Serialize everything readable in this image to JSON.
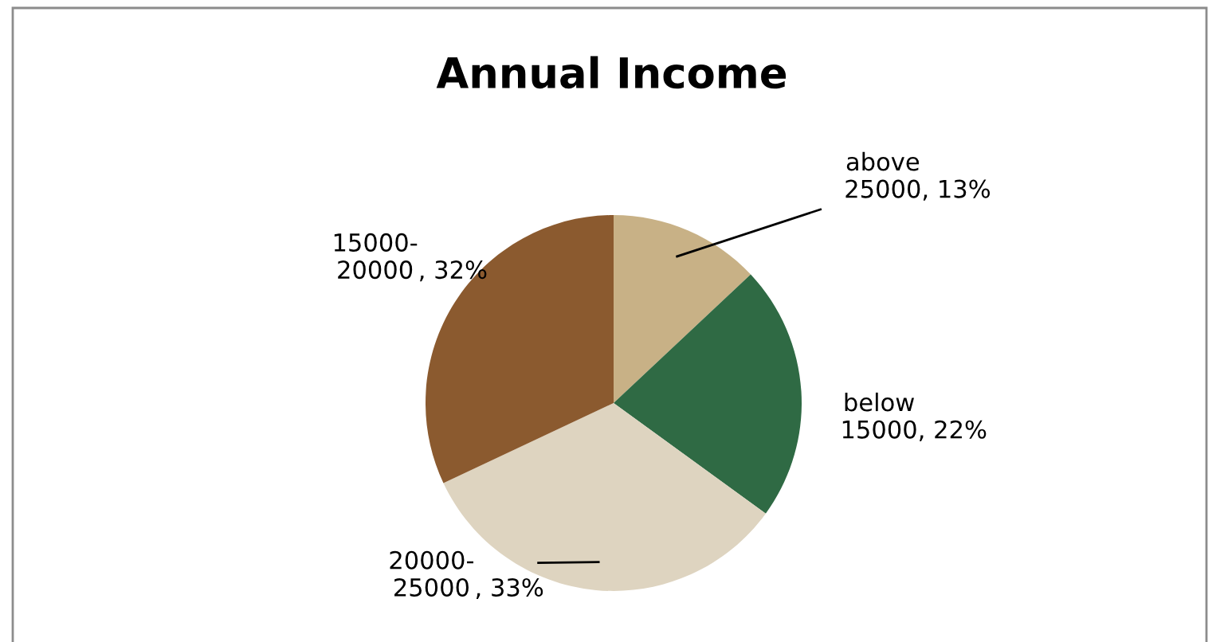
{
  "chart_data": {
    "type": "pie",
    "title": "Annual Income",
    "categories": [
      "above 25000",
      "below 15000",
      "20000-25000",
      "15000-20000"
    ],
    "values": [
      13,
      22,
      33,
      32
    ],
    "colors": [
      "#c8b186",
      "#2f6a44",
      "#ded4c0",
      "#8b5a2f"
    ],
    "value_labels": [
      ", 13%",
      ", 22%",
      ", 33%",
      ", 32%"
    ],
    "legend": false
  }
}
